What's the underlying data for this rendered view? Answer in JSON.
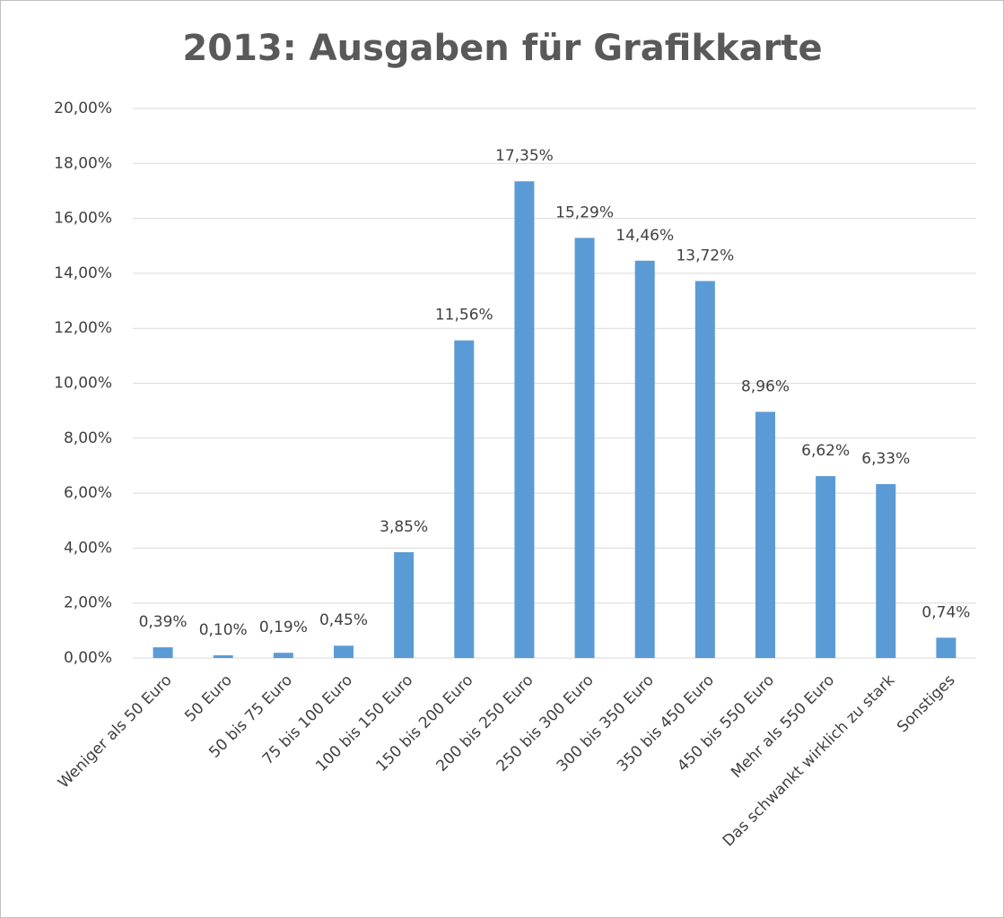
{
  "chart_data": {
    "type": "bar",
    "title": "2013: Ausgaben für Grafikkarte",
    "categories": [
      "Weniger als 50 Euro",
      "50 Euro",
      "50 bis 75 Euro",
      "75 bis 100 Euro",
      "100 bis 150 Euro",
      "150 bis 200 Euro",
      "200 bis 250 Euro",
      "250 bis 300 Euro",
      "300 bis 350 Euro",
      "350 bis 450 Euro",
      "450 bis 550 Euro",
      "Mehr als 550 Euro",
      "Das schwankt wirklich zu stark",
      "Sonstiges"
    ],
    "values": [
      0.39,
      0.1,
      0.19,
      0.45,
      3.85,
      11.56,
      17.35,
      15.29,
      14.46,
      13.72,
      8.96,
      6.62,
      6.33,
      0.74
    ],
    "value_labels": [
      "0,39%",
      "0,10%",
      "0,19%",
      "0,45%",
      "3,85%",
      "11,56%",
      "17,35%",
      "15,29%",
      "14,46%",
      "13,72%",
      "8,96%",
      "6,62%",
      "6,33%",
      "0,74%"
    ],
    "color": "#5b9bd5",
    "ylim": [
      0,
      20
    ],
    "yticks": [
      {
        "value": 0,
        "label": "0,00%"
      },
      {
        "value": 2,
        "label": "2,00%"
      },
      {
        "value": 4,
        "label": "4,00%"
      },
      {
        "value": 6,
        "label": "6,00%"
      },
      {
        "value": 8,
        "label": "8,00%"
      },
      {
        "value": 10,
        "label": "10,00%"
      },
      {
        "value": 12,
        "label": "12,00%"
      },
      {
        "value": 14,
        "label": "14,00%"
      },
      {
        "value": 16,
        "label": "16,00%"
      },
      {
        "value": 18,
        "label": "18,00%"
      },
      {
        "value": 20,
        "label": "20,00%"
      }
    ],
    "grid": true
  }
}
